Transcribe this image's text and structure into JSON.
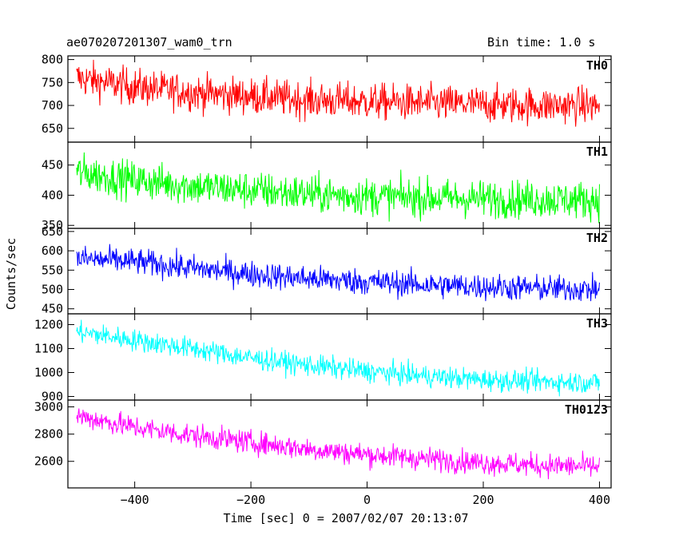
{
  "header": {
    "title": "ae070207201307_wam0_trn",
    "bin_time": "Bin time: 1.0 s"
  },
  "chart_data": {
    "type": "line",
    "title": "ae070207201307_wam0_trn",
    "subtitle": "Bin time: 1.0 s",
    "xlabel": "Time [sec] 0 = 2007/02/07 20:13:07",
    "ylabel": "Counts/sec",
    "xlim": [
      -515,
      420
    ],
    "x_ticks": [
      -400,
      -200,
      0,
      200,
      400
    ],
    "x_tick_labels": [
      "−400",
      "−200",
      "0",
      "200",
      "400"
    ],
    "bin_seconds": 1.0,
    "x_range": [
      -500,
      400
    ],
    "panels": [
      {
        "name": "TH0",
        "color": "#ff0000",
        "ylim": [
          620,
          808
        ],
        "yticks": [
          650,
          700,
          750,
          800
        ],
        "trend": [
          [
            -500,
            760
          ],
          [
            -400,
            740
          ],
          [
            -300,
            728
          ],
          [
            -200,
            720
          ],
          [
            -100,
            712
          ],
          [
            0,
            708
          ],
          [
            100,
            705
          ],
          [
            200,
            702
          ],
          [
            300,
            700
          ],
          [
            400,
            700
          ]
        ],
        "noise": 28
      },
      {
        "name": "TH1",
        "color": "#00ff00",
        "ylim": [
          345,
          488
        ],
        "yticks": [
          350,
          400,
          450
        ],
        "trend": [
          [
            -500,
            438
          ],
          [
            -400,
            425
          ],
          [
            -300,
            415
          ],
          [
            -200,
            408
          ],
          [
            -100,
            402
          ],
          [
            0,
            398
          ],
          [
            100,
            396
          ],
          [
            200,
            394
          ],
          [
            300,
            393
          ],
          [
            400,
            392
          ]
        ],
        "noise": 22
      },
      {
        "name": "TH2",
        "color": "#0000ff",
        "ylim": [
          437,
          658
        ],
        "yticks": [
          450,
          500,
          550,
          600,
          650
        ],
        "trend": [
          [
            -500,
            580
          ],
          [
            -400,
            572
          ],
          [
            -300,
            555
          ],
          [
            -200,
            540
          ],
          [
            -100,
            528
          ],
          [
            0,
            520
          ],
          [
            100,
            512
          ],
          [
            200,
            507
          ],
          [
            300,
            503
          ],
          [
            400,
            500
          ]
        ],
        "noise": 24
      },
      {
        "name": "TH3",
        "color": "#00ffff",
        "ylim": [
          885,
          1245
        ],
        "yticks": [
          900,
          1000,
          1100,
          1200
        ],
        "trend": [
          [
            -500,
            1170
          ],
          [
            -400,
            1135
          ],
          [
            -300,
            1100
          ],
          [
            -200,
            1060
          ],
          [
            -100,
            1030
          ],
          [
            0,
            1005
          ],
          [
            100,
            985
          ],
          [
            200,
            970
          ],
          [
            300,
            962
          ],
          [
            400,
            958
          ]
        ],
        "noise": 32
      },
      {
        "name": "TH0123",
        "color": "#ff00ff",
        "ylim": [
          2405,
          3050
        ],
        "yticks": [
          2600,
          2800,
          3000
        ],
        "trend": [
          [
            -500,
            2935
          ],
          [
            -400,
            2850
          ],
          [
            -300,
            2790
          ],
          [
            -200,
            2740
          ],
          [
            -100,
            2690
          ],
          [
            0,
            2650
          ],
          [
            100,
            2620
          ],
          [
            200,
            2590
          ],
          [
            300,
            2570
          ],
          [
            400,
            2560
          ]
        ],
        "noise": 60
      }
    ]
  }
}
